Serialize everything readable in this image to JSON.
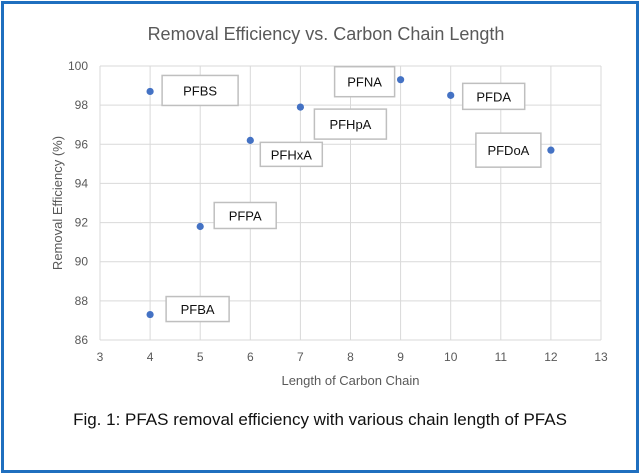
{
  "chart_data": {
    "type": "scatter",
    "title": "Removal Efficiency vs. Carbon Chain Length",
    "xlabel": "Length of Carbon Chain",
    "ylabel": "Removal Efficiency (%)",
    "xlim": [
      3,
      13
    ],
    "ylim": [
      86,
      100
    ],
    "xticks": [
      "3",
      "4",
      "5",
      "6",
      "7",
      "8",
      "9",
      "10",
      "11",
      "12",
      "13"
    ],
    "yticks": [
      "86",
      "88",
      "90",
      "92",
      "94",
      "96",
      "98",
      "100"
    ],
    "grid": true,
    "legend": "none",
    "marker_color": "#4472c4",
    "points": [
      {
        "label": "PFBS",
        "x": 4,
        "y": 98.7
      },
      {
        "label": "PFNA",
        "x": 9,
        "y": 99.3
      },
      {
        "label": "PFDA",
        "x": 10,
        "y": 98.5
      },
      {
        "label": "PFHpA",
        "x": 7,
        "y": 97.9
      },
      {
        "label": "PFHxA",
        "x": 6,
        "y": 96.2
      },
      {
        "label": "PFDoA",
        "x": 12,
        "y": 95.7
      },
      {
        "label": "PFPA",
        "x": 5,
        "y": 91.8
      },
      {
        "label": "PFBA",
        "x": 4,
        "y": 87.3
      }
    ]
  },
  "caption": "Fig. 1: PFAS removal efficiency with various chain length of PFAS",
  "colors": {
    "border": "#1f6fbf",
    "grid": "#d9d9d9",
    "axis_text": "#595959"
  }
}
